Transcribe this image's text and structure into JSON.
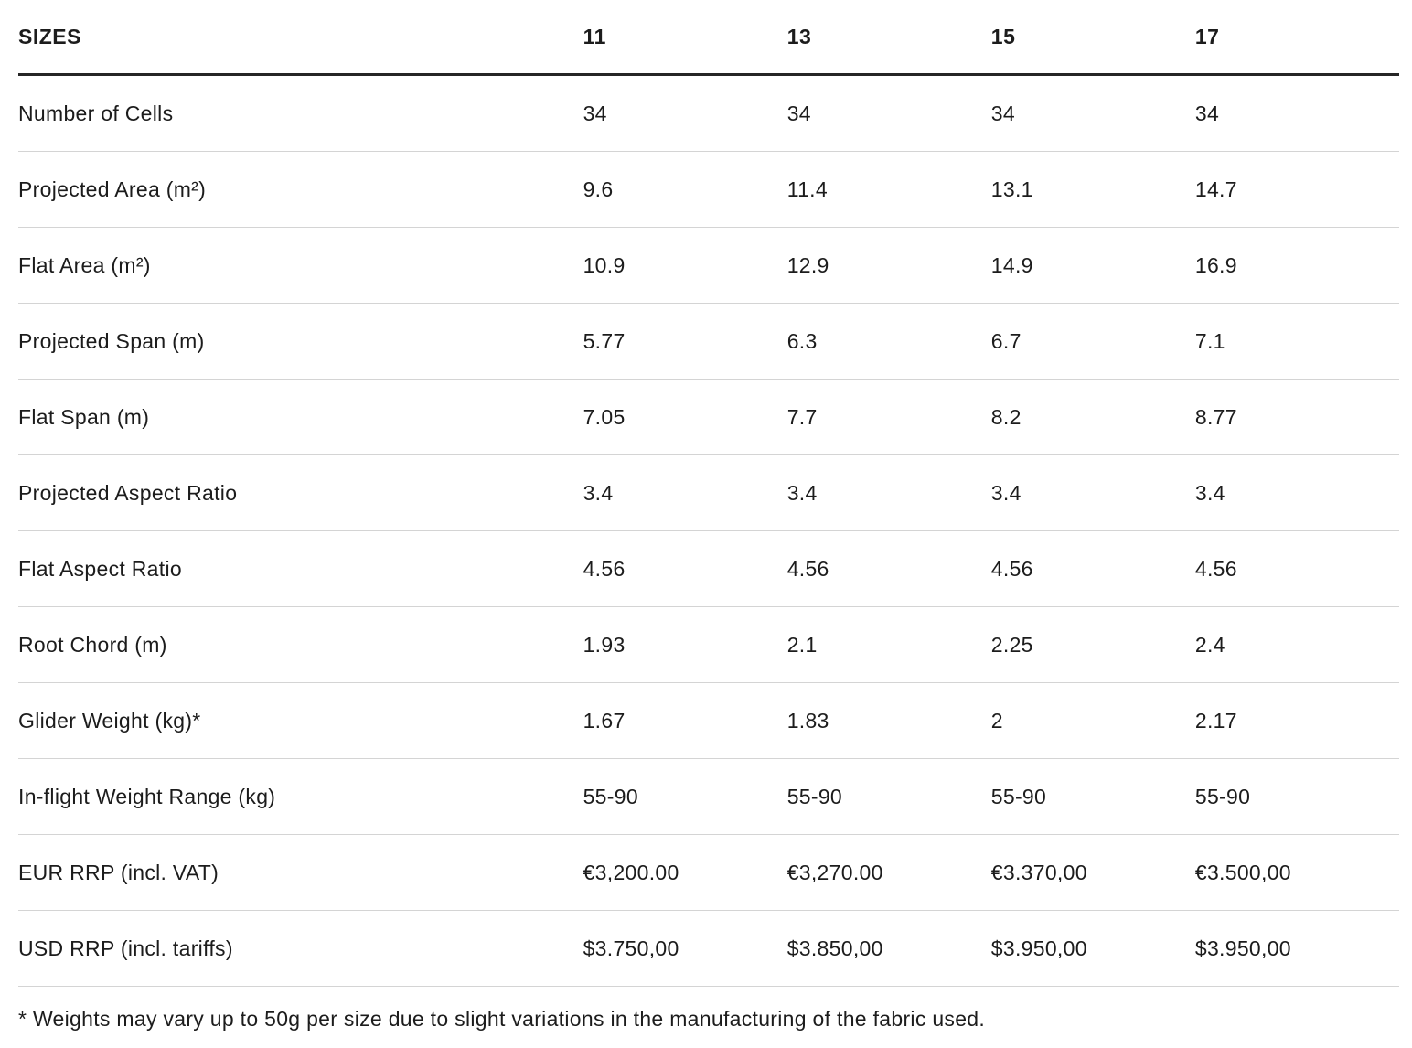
{
  "table": {
    "header_label": "SIZES",
    "size_columns": [
      "11",
      "13",
      "15",
      "17"
    ],
    "rows": [
      {
        "label": "Number of Cells",
        "values": [
          "34",
          "34",
          "34",
          "34"
        ]
      },
      {
        "label": "Projected Area (m²)",
        "values": [
          "9.6",
          "11.4",
          "13.1",
          "14.7"
        ]
      },
      {
        "label": "Flat Area (m²)",
        "values": [
          "10.9",
          "12.9",
          "14.9",
          "16.9"
        ]
      },
      {
        "label": "Projected Span (m)",
        "values": [
          "5.77",
          "6.3",
          "6.7",
          "7.1"
        ]
      },
      {
        "label": "Flat Span (m)",
        "values": [
          "7.05",
          "7.7",
          "8.2",
          "8.77"
        ]
      },
      {
        "label": "Projected Aspect Ratio",
        "values": [
          "3.4",
          "3.4",
          "3.4",
          "3.4"
        ]
      },
      {
        "label": "Flat Aspect Ratio",
        "values": [
          "4.56",
          "4.56",
          "4.56",
          "4.56"
        ]
      },
      {
        "label": "Root Chord (m)",
        "values": [
          "1.93",
          "2.1",
          "2.25",
          "2.4"
        ]
      },
      {
        "label": "Glider Weight (kg)*",
        "values": [
          "1.67",
          "1.83",
          "2",
          "2.17"
        ]
      },
      {
        "label": "In-flight Weight Range (kg)",
        "values": [
          "55-90",
          "55-90",
          "55-90",
          "55-90"
        ]
      },
      {
        "label": "EUR RRP (incl. VAT)",
        "values": [
          "€3,200.00",
          "€3,270.00",
          "€3.370,00",
          "€3.500,00"
        ]
      },
      {
        "label": "USD RRP (incl. tariffs)",
        "values": [
          "$3.750,00",
          "$3.850,00",
          "$3.950,00",
          "$3.950,00"
        ]
      }
    ]
  },
  "page": {
    "footnote": "* Weights may vary up to 50g per size due to slight variations in the manufacturing of the fabric used."
  },
  "colors": {
    "text": "#1c1c1c",
    "header_rule": "#262626",
    "row_rule": "#d4d4d4",
    "background": "#ffffff"
  }
}
